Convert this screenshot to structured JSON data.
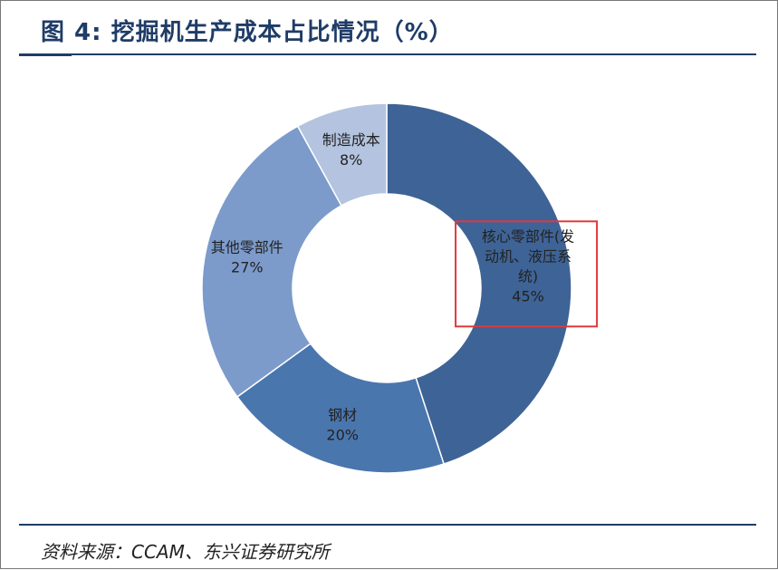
{
  "header": {
    "title": "图 4: 挖掘机生产成本占比情况（%）"
  },
  "footer": {
    "source": "资料来源：CCAM、东兴证券研究所"
  },
  "chart_data": {
    "type": "pie",
    "variant": "donut",
    "title": "图 4: 挖掘机生产成本占比情况（%）",
    "slices": [
      {
        "label_lines": [
          "核心零部件(发",
          "动机、液压系",
          "统)"
        ],
        "label": "核心零部件(发动机、液压系统)",
        "value": 45,
        "value_label": "45%",
        "color": "#3E6396",
        "highlighted": true
      },
      {
        "label_lines": [
          "钢材"
        ],
        "label": "钢材",
        "value": 20,
        "value_label": "20%",
        "color": "#4A76AE"
      },
      {
        "label_lines": [
          "其他零部件"
        ],
        "label": "其他零部件",
        "value": 27,
        "value_label": "27%",
        "color": "#7C9BCB"
      },
      {
        "label_lines": [
          "制造成本"
        ],
        "label": "制造成本",
        "value": 8,
        "value_label": "8%",
        "color": "#B4C3DF"
      }
    ],
    "highlight_color": "#E0393E"
  }
}
